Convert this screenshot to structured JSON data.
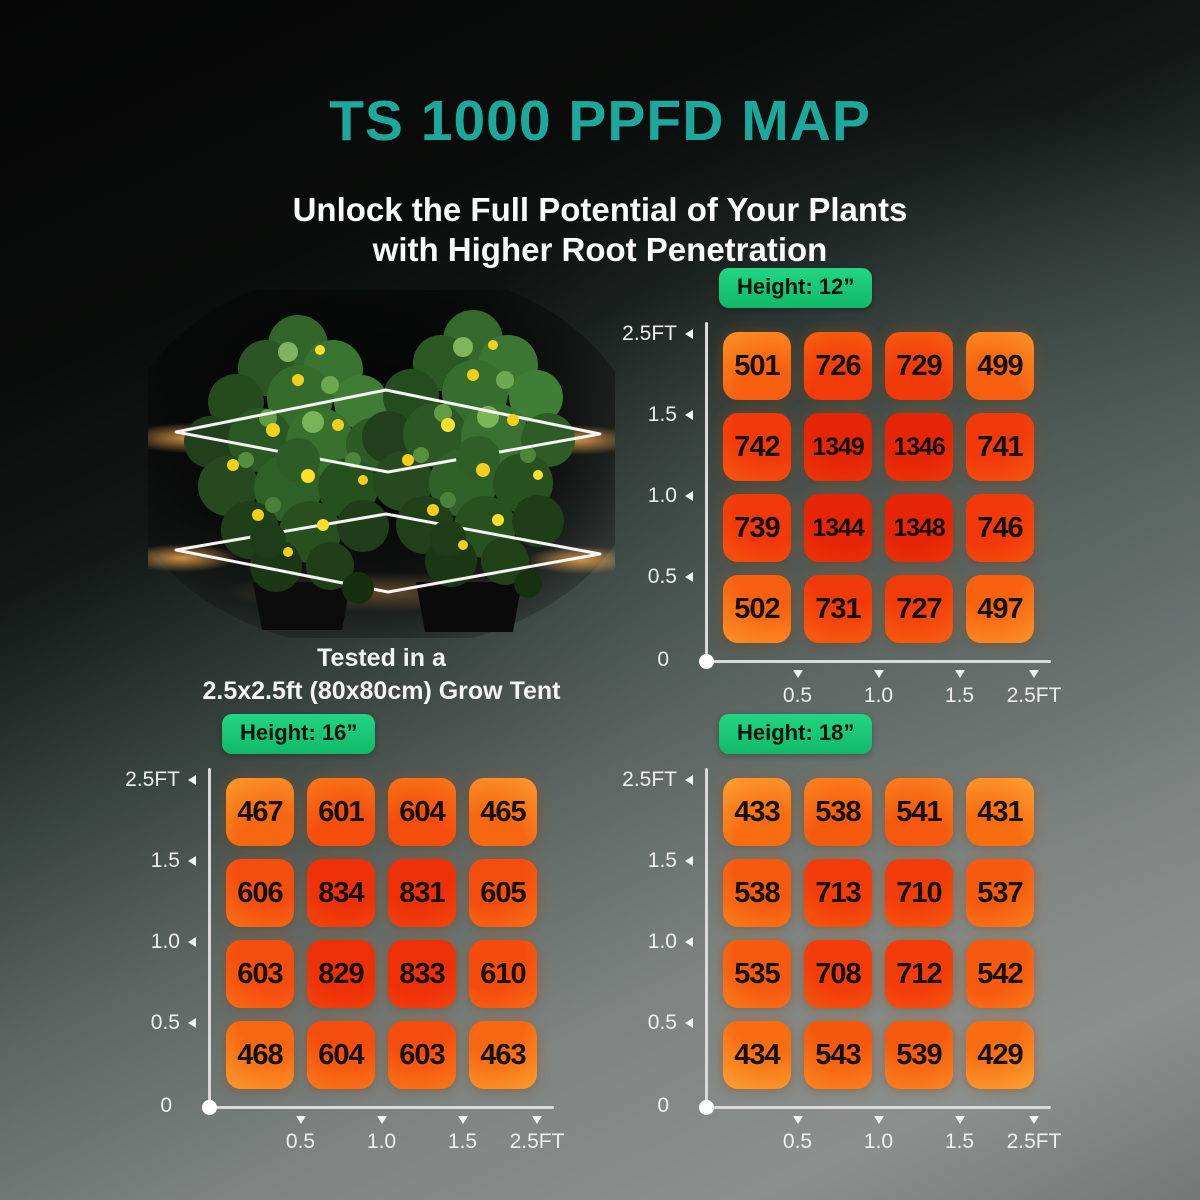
{
  "page_title": "TS 1000 PPFD MAP",
  "subtitle": {
    "line1": "Unlock the Full Potential of Your Plants",
    "line2": "with Higher Root Penetration"
  },
  "plant": {
    "caption_line1": "Tested in a",
    "caption_line2": "2.5x2.5ft (80x80cm) Grow Tent"
  },
  "axis": {
    "y_ticks": [
      "2.5FT",
      "1.5",
      "1.0",
      "0.5",
      "0"
    ],
    "x_ticks": [
      "0.5",
      "1.0",
      "1.5",
      "2.5FT"
    ]
  },
  "colors": {
    "title_teal": "#1CA99B",
    "badge_green": "#12C573",
    "cell_low_orange": "#FFAE3C",
    "cell_high_red": "#E62706",
    "axis_line": "#D9DAD9",
    "cell_value_text": "#131010"
  },
  "chart_data": [
    {
      "type": "heatmap",
      "height_badge": "Height: 12”",
      "x_labels": [
        "0.5",
        "1.0",
        "1.5",
        "2.5FT"
      ],
      "y_labels": [
        "2.5FT",
        "1.5",
        "1.0",
        "0.5",
        "0"
      ],
      "values": [
        [
          501,
          726,
          729,
          499
        ],
        [
          742,
          1349,
          1346,
          741
        ],
        [
          739,
          1344,
          1348,
          746
        ],
        [
          502,
          731,
          727,
          497
        ]
      ]
    },
    {
      "type": "heatmap",
      "height_badge": "Height: 16”",
      "x_labels": [
        "0.5",
        "1.0",
        "1.5",
        "2.5FT"
      ],
      "y_labels": [
        "2.5FT",
        "1.5",
        "1.0",
        "0.5",
        "0"
      ],
      "values": [
        [
          467,
          601,
          604,
          465
        ],
        [
          606,
          834,
          831,
          605
        ],
        [
          603,
          829,
          833,
          610
        ],
        [
          468,
          604,
          603,
          463
        ]
      ]
    },
    {
      "type": "heatmap",
      "height_badge": "Height: 18”",
      "x_labels": [
        "0.5",
        "1.0",
        "1.5",
        "2.5FT"
      ],
      "y_labels": [
        "2.5FT",
        "1.5",
        "1.0",
        "0.5",
        "0"
      ],
      "values": [
        [
          433,
          538,
          541,
          431
        ],
        [
          538,
          713,
          710,
          537
        ],
        [
          535,
          708,
          712,
          542
        ],
        [
          434,
          543,
          539,
          429
        ]
      ]
    }
  ]
}
